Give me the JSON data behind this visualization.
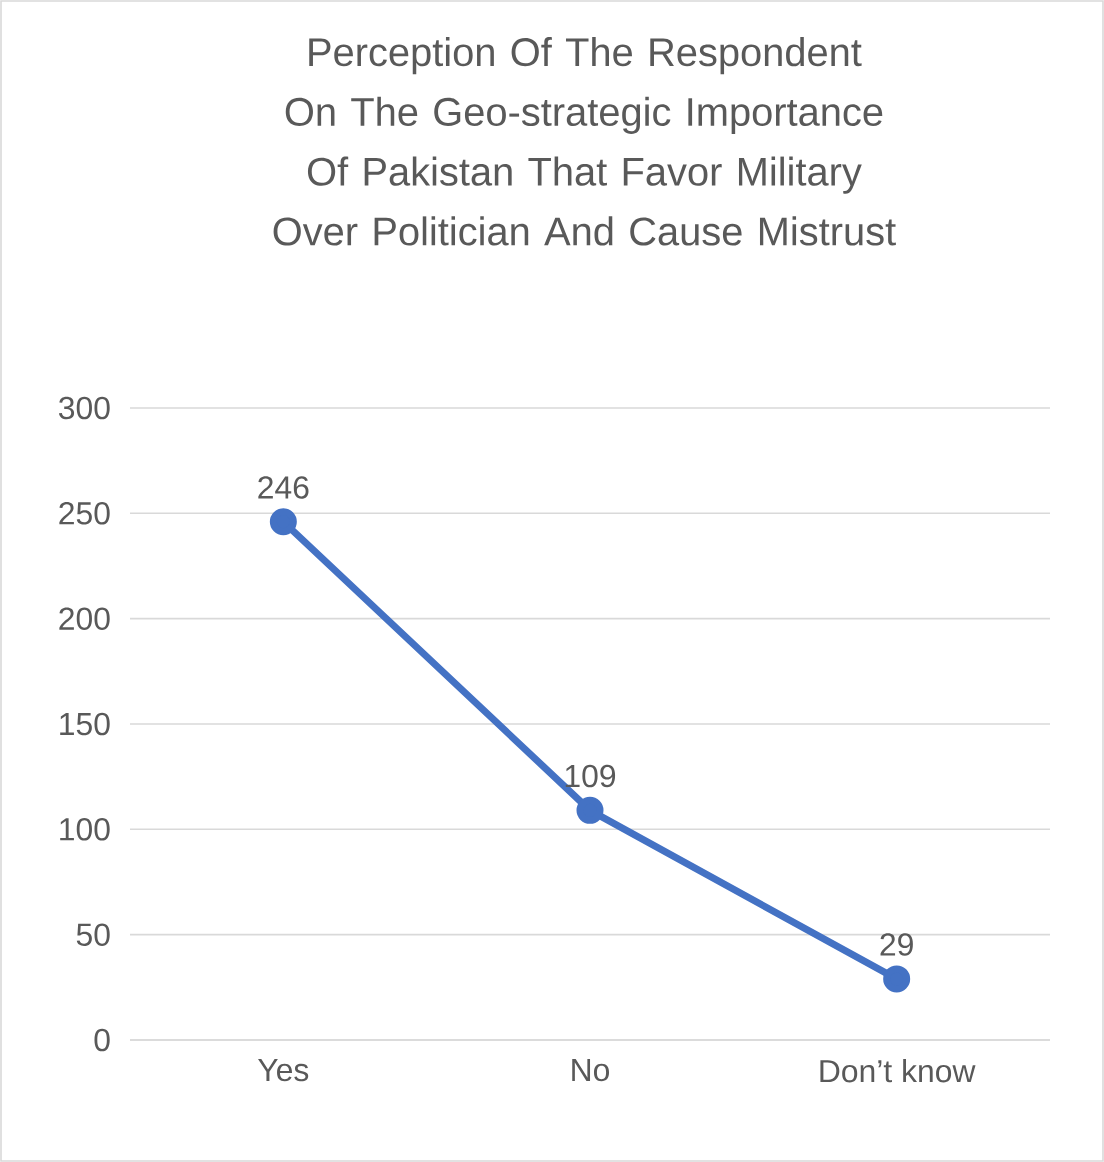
{
  "chart_data": {
    "type": "line",
    "title": "Perception Of The Respondent On The Geo-strategic Importance Of Pakistan That Favor Military Over Politician And Cause Mistrust",
    "categories": [
      "Yes",
      "No",
      "Don’t know"
    ],
    "values": [
      246,
      109,
      29
    ],
    "color": "#4472c4",
    "ylim": [
      0,
      300
    ],
    "yticks": [
      0,
      50,
      100,
      150,
      200,
      250,
      300
    ],
    "grid": "y",
    "marker": "circle",
    "line_style": "solid",
    "data_labels": true
  }
}
